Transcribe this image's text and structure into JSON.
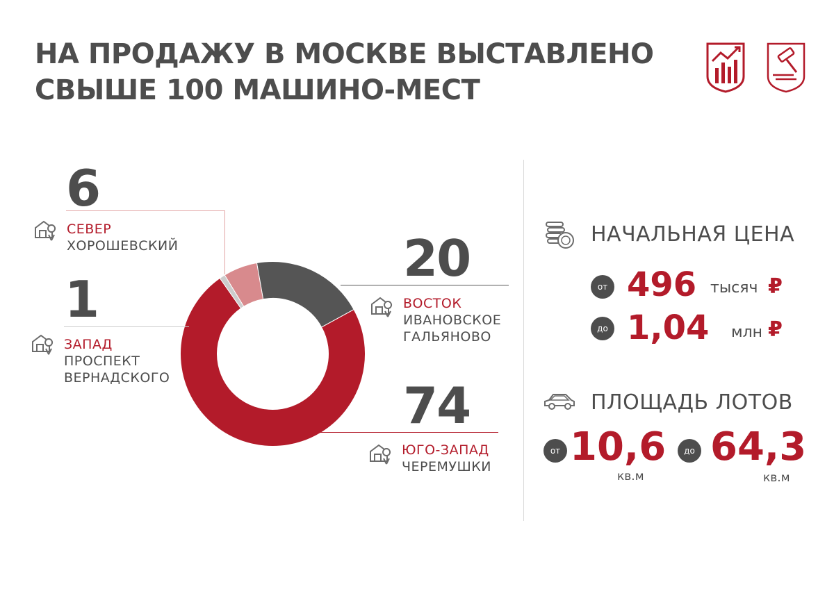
{
  "title": {
    "line1": "НА ПРОДАЖУ В МОСКВЕ ВЫСТАВЛЕНО",
    "line2": "СВЫШЕ 100 МАШИНО-МЕСТ"
  },
  "colors": {
    "accent_red": "#b31b2a",
    "dark_gray": "#555555",
    "light_red": "#d88a8d",
    "light_gray": "#cccccc",
    "text": "#4d4d4d"
  },
  "icons": {
    "logo_left": "chart-logo-icon",
    "logo_right": "gavel-logo-icon",
    "location": "building-location-icon",
    "price": "coins-icon",
    "area": "car-icon"
  },
  "chart_data": {
    "type": "pie",
    "donut": true,
    "categories": [
      "ВОСТОК",
      "ЮГО-ЗАПАД",
      "ЗАПАД",
      "СЕВЕР"
    ],
    "values": [
      20,
      74,
      1,
      6
    ],
    "colors": [
      "#555555",
      "#b31b2a",
      "#cccccc",
      "#d88a8d"
    ],
    "labels": [
      {
        "value": "20",
        "region": "ВОСТОК",
        "district_lines": [
          "ИВАНОВСКОЕ",
          "ГАЛЬЯНОВО"
        ]
      },
      {
        "value": "74",
        "region": "ЮГО-ЗАПАД",
        "district_lines": [
          "ЧЕРЕМУШКИ"
        ]
      },
      {
        "value": "1",
        "region": "ЗАПАД",
        "district_lines": [
          "ПРОСПЕКТ",
          "ВЕРНАДСКОГО"
        ]
      },
      {
        "value": "6",
        "region": "СЕВЕР",
        "district_lines": [
          "ХОРОШЕВСКИЙ"
        ]
      }
    ]
  },
  "price": {
    "title": "НАЧАЛЬНАЯ ЦЕНА",
    "from": {
      "badge": "от",
      "value": "496",
      "unit": "тысяч",
      "currency": "₽"
    },
    "to": {
      "badge": "до",
      "value": "1,04",
      "unit": "млн",
      "currency": "₽"
    }
  },
  "area": {
    "title": "ПЛОЩАДЬ ЛОТОВ",
    "from": {
      "badge": "от",
      "value": "10,6",
      "unit": "кв.м"
    },
    "to": {
      "badge": "до",
      "value": "64,3",
      "unit": "кв.м"
    }
  }
}
